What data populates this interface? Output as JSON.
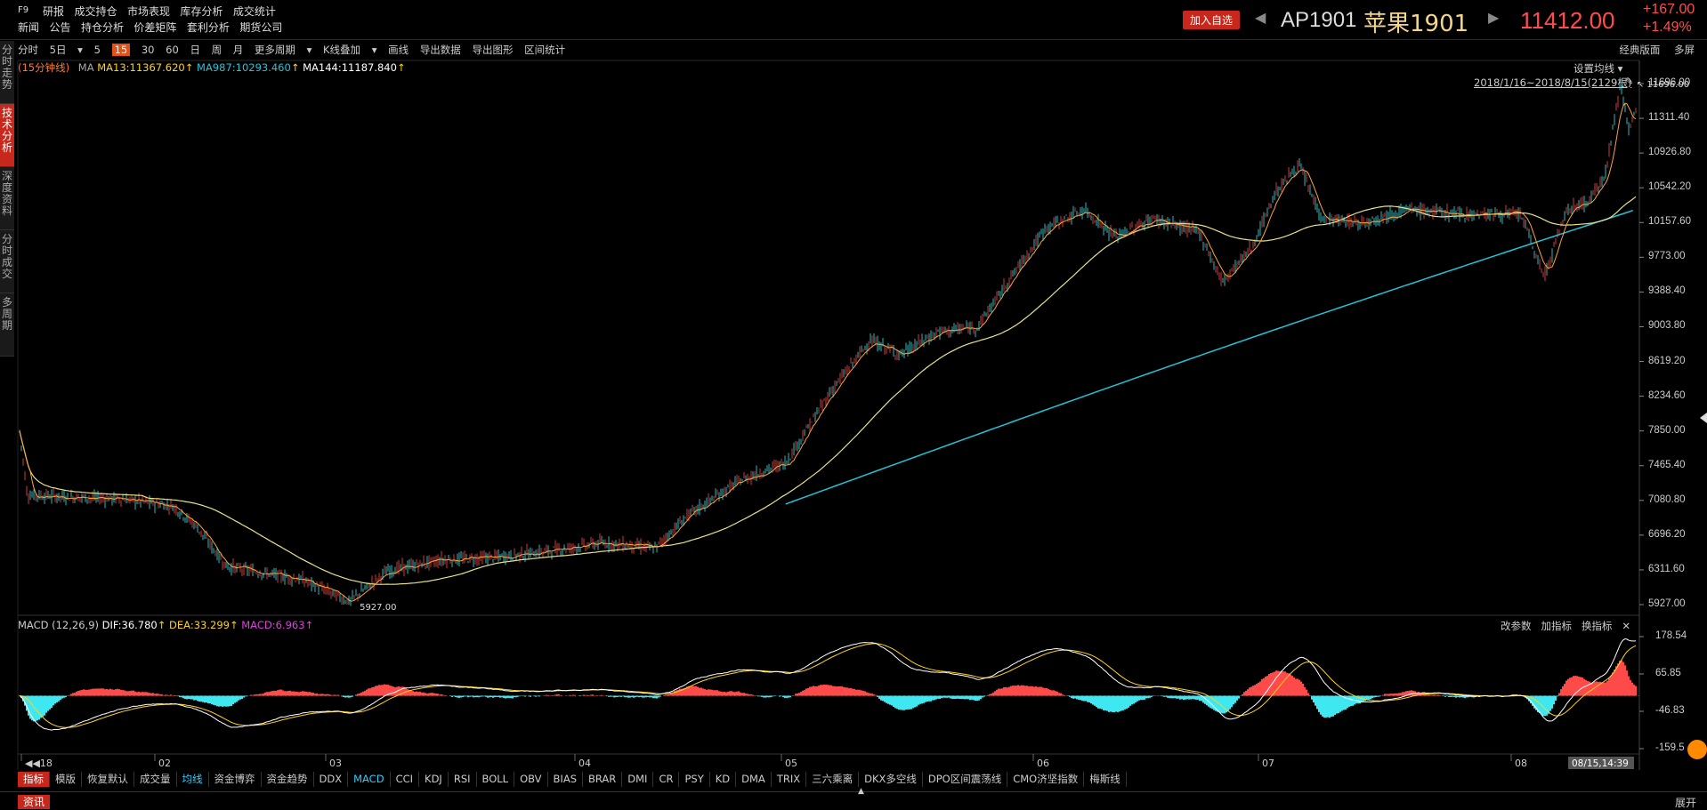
{
  "top": {
    "f9": "F9",
    "menu_row1": [
      "研报",
      "成交持仓",
      "市场表现",
      "库存分析",
      "成交统计"
    ],
    "menu_row2": [
      "新闻",
      "公告",
      "持仓分析",
      "价差矩阵",
      "套利分析",
      "期货公司"
    ],
    "add_fav": "加入自选",
    "code": "AP1901",
    "name": "苹果1901",
    "price": "11412.00",
    "change": "+167.00",
    "change_pct": "+1.49%"
  },
  "sidebar": [
    "分时走势",
    "技术分析",
    "深度资料",
    "分时成交",
    "多周期"
  ],
  "toolbar": {
    "items": [
      "分时",
      "5日",
      "5",
      "15",
      "30",
      "60",
      "日",
      "周",
      "月",
      "更多周期",
      "K线叠加",
      "画线",
      "导出数据",
      "导出图形",
      "区间统计"
    ],
    "selected": "15",
    "style_toggle": "经典版面",
    "split": "多屏"
  },
  "main_legend": {
    "period": "(15分钟线)",
    "ma": "MA",
    "ma13": "MA13:11367.620",
    "ma987": "MA987:10293.460",
    "ma144": "MA144:11187.840"
  },
  "ma_settings": "设置均线",
  "date_range": "2018/1/16~2018/8/15(2129根)",
  "price_axis": [
    "11696.00",
    "11311.40",
    "10926.80",
    "10542.20",
    "10157.60",
    "9773.00",
    "9388.40",
    "9003.80",
    "8619.20",
    "8234.60",
    "7850.00",
    "7465.40",
    "7080.80",
    "6696.20",
    "6311.60",
    "5927.00"
  ],
  "max_label": "11696.00",
  "min_label": "5927.00",
  "macd": {
    "title": "MACD (12,26,9)",
    "dif": "DIF:36.780",
    "dea": "DEA:33.299",
    "macd": "MACD:6.963",
    "buttons": [
      "改参数",
      "加指标",
      "换指标"
    ],
    "close": "✕",
    "axis": [
      "178.54",
      "65.85",
      "-46.83",
      "-159.5"
    ]
  },
  "time_axis": [
    "18",
    "02",
    "03",
    "04",
    "05",
    "06",
    "07",
    "08"
  ],
  "cursor_time": "08/15,14:39",
  "bottom_tabs": [
    "指标",
    "模版",
    "恢复默认",
    "成交量",
    "均线",
    "资金博弈",
    "资金趋势",
    "DDX",
    "MACD",
    "CCI",
    "KDJ",
    "RSI",
    "BOLL",
    "OBV",
    "BIAS",
    "BRAR",
    "DMI",
    "CR",
    "PSY",
    "KD",
    "DMA",
    "TRIX",
    "三六乘离",
    "DKX多空线",
    "DPO区间震荡线",
    "CMO济坚指数",
    "梅斯线"
  ],
  "news": "资讯",
  "expand": "展开",
  "colors": {
    "up": "#ff4a4a",
    "down": "#3fe8f0",
    "ma13": "#ffa63a",
    "ma144": "#e8e08a",
    "ma987": "#22c4d8",
    "dif": "#ffffff",
    "dea": "#ffd21a",
    "accent": "#c8281c"
  },
  "price_path": [
    [
      "2018-01-16",
      7850
    ],
    [
      "2018-01-17",
      7140
    ],
    [
      "2018-01-22",
      7120
    ],
    [
      "2018-01-29",
      7100
    ],
    [
      "2018-02-05",
      7020
    ],
    [
      "2018-02-08",
      6800
    ],
    [
      "2018-02-12",
      6350
    ],
    [
      "2018-02-22",
      6200
    ],
    [
      "2018-02-28",
      5960
    ],
    [
      "2018-03-05",
      6300
    ],
    [
      "2018-03-12",
      6420
    ],
    [
      "2018-03-19",
      6450
    ],
    [
      "2018-03-26",
      6520
    ],
    [
      "2018-04-02",
      6610
    ],
    [
      "2018-04-09",
      6550
    ],
    [
      "2018-04-13",
      6900
    ],
    [
      "2018-04-20",
      7300
    ],
    [
      "2018-04-26",
      7500
    ],
    [
      "2018-05-02",
      8300
    ],
    [
      "2018-05-07",
      8850
    ],
    [
      "2018-05-11",
      8700
    ],
    [
      "2018-05-16",
      8950
    ],
    [
      "2018-05-21",
      9000
    ],
    [
      "2018-05-25",
      9500
    ],
    [
      "2018-05-30",
      10100
    ],
    [
      "2018-06-04",
      10300
    ],
    [
      "2018-06-08",
      10000
    ],
    [
      "2018-06-13",
      10200
    ],
    [
      "2018-06-19",
      10050
    ],
    [
      "2018-06-22",
      9500
    ],
    [
      "2018-06-26",
      9900
    ],
    [
      "2018-06-29",
      10500
    ],
    [
      "2018-07-02",
      10800
    ],
    [
      "2018-07-05",
      10200
    ],
    [
      "2018-07-10",
      10150
    ],
    [
      "2018-07-16",
      10300
    ],
    [
      "2018-07-24",
      10250
    ],
    [
      "2018-07-31",
      10250
    ],
    [
      "2018-08-03",
      9550
    ],
    [
      "2018-08-06",
      10300
    ],
    [
      "2018-08-09",
      10400
    ],
    [
      "2018-08-11",
      10700
    ],
    [
      "2018-08-13",
      11690
    ],
    [
      "2018-08-14",
      11200
    ],
    [
      "2018-08-15",
      11412
    ]
  ]
}
